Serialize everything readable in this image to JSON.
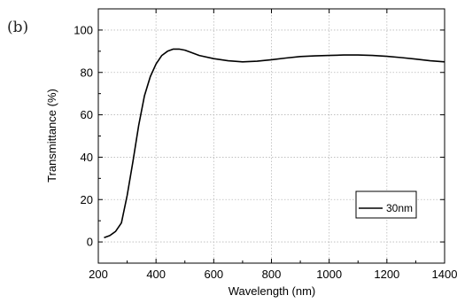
{
  "panel_label": "(b)",
  "chart_data": {
    "type": "line",
    "title": "",
    "xlabel": "Wavelength (nm)",
    "ylabel": "Transmittance (%)",
    "xlim": [
      200,
      1400
    ],
    "ylim": [
      -10,
      110
    ],
    "x_ticks": [
      200,
      400,
      600,
      800,
      1000,
      1200,
      1400
    ],
    "y_ticks": [
      0,
      20,
      40,
      60,
      80,
      100
    ],
    "grid": true,
    "legend_position": "bottom-right",
    "series": [
      {
        "name": "30nm",
        "color": "#000000",
        "x": [
          220,
          240,
          260,
          280,
          300,
          320,
          340,
          360,
          380,
          400,
          420,
          440,
          460,
          480,
          500,
          520,
          550,
          600,
          650,
          700,
          750,
          800,
          850,
          900,
          950,
          1000,
          1050,
          1100,
          1150,
          1200,
          1250,
          1300,
          1350,
          1400
        ],
        "y": [
          2,
          3,
          5,
          9,
          22,
          38,
          55,
          69,
          78,
          84,
          88,
          90,
          91,
          91,
          90.5,
          89.5,
          88,
          86.5,
          85.5,
          85,
          85.3,
          86,
          86.8,
          87.5,
          87.8,
          88,
          88.2,
          88.2,
          88,
          87.6,
          87,
          86.3,
          85.5,
          85
        ]
      }
    ]
  }
}
